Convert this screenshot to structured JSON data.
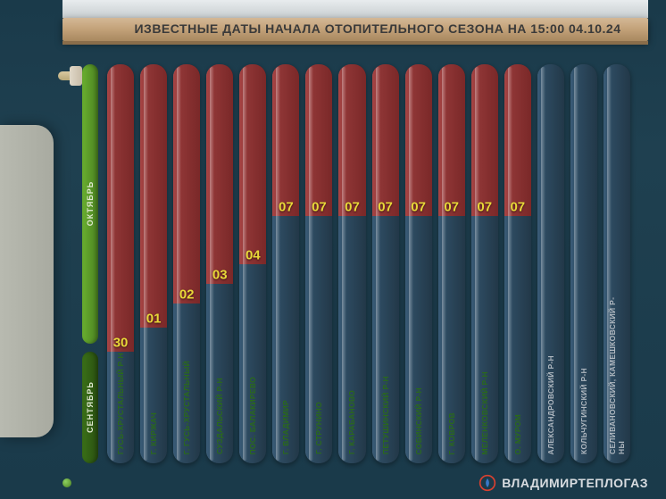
{
  "title": "ИЗВЕСТНЫЕ ДАТЫ НАЧАЛА ОТОПИТЕЛЬНОГО СЕЗОНА НА 15:00 04.10.24",
  "brand": "ВЛАДИМИРТЕПЛОГАЗ",
  "months": {
    "oct": {
      "label": "ОКТЯБРЬ",
      "height_pct": 70
    },
    "sep": {
      "label": "СЕНТЯБРЬ",
      "height_pct": 28
    }
  },
  "chart": {
    "type": "bar",
    "red_color": "#8e3535",
    "blue_color": "#2d4a60",
    "green_red": "#4a8020",
    "blue_only": "#2d4a60",
    "value_label_color": "#e8d838",
    "loc_label_red_color": "#2a6a1a",
    "loc_label_blue_color": "#b0b8c0",
    "background_color": "#1a3a4a",
    "shelf_color": "#c2a178",
    "columns": [
      {
        "loc": "ГУСЬ-ХРУСТАЛЬНЫЙ Р-Н",
        "val": "30",
        "red_pct": 72,
        "loc_red": true
      },
      {
        "loc": "Г. КИРЖАЧ",
        "val": "01",
        "red_pct": 66,
        "loc_red": true
      },
      {
        "loc": "Г. ГУСЬ-ХРУСТАЛЬНЫЙ",
        "val": "02",
        "red_pct": 60,
        "loc_red": true
      },
      {
        "loc": "СУЗДАЛЬСКИЙ Р-Н",
        "val": "03",
        "red_pct": 55,
        "loc_red": true
      },
      {
        "loc": "ПОС. БАЛАКИРЕВО",
        "val": "04",
        "red_pct": 50,
        "loc_red": true
      },
      {
        "loc": "Г. ВЛАДИМИР",
        "val": "07",
        "red_pct": 38,
        "loc_red": true
      },
      {
        "loc": "Г. СТРУНИНО",
        "val": "07",
        "red_pct": 38,
        "loc_red": true
      },
      {
        "loc": "Г. КАРАБАНОВО",
        "val": "07",
        "red_pct": 38,
        "loc_red": true
      },
      {
        "loc": "ПЕТУШИНСКИЙ Р-Н",
        "val": "07",
        "red_pct": 38,
        "loc_red": true
      },
      {
        "loc": "СОБИНСКИЙ Р-Н",
        "val": "07",
        "red_pct": 38,
        "loc_red": true
      },
      {
        "loc": "Г. КОВРОВ",
        "val": "07",
        "red_pct": 38,
        "loc_red": true
      },
      {
        "loc": "МЕЛЕНКОВСКИЙ Р-Н",
        "val": "07",
        "red_pct": 38,
        "loc_red": true
      },
      {
        "loc": "О. МУРОМ",
        "val": "07",
        "red_pct": 38,
        "loc_red": true
      },
      {
        "loc": "АЛЕКСАНДРОВСКИЙ Р-Н",
        "val": "",
        "red_pct": 0,
        "loc_red": false
      },
      {
        "loc": "КОЛЬЧУГИНСКИЙ Р-Н",
        "val": "",
        "red_pct": 0,
        "loc_red": false
      },
      {
        "loc": "СЕЛИВАНОВСКИЙ, КАМЕШКОВСКИЙ Р-НЫ",
        "val": "",
        "red_pct": 0,
        "loc_red": false
      }
    ]
  }
}
